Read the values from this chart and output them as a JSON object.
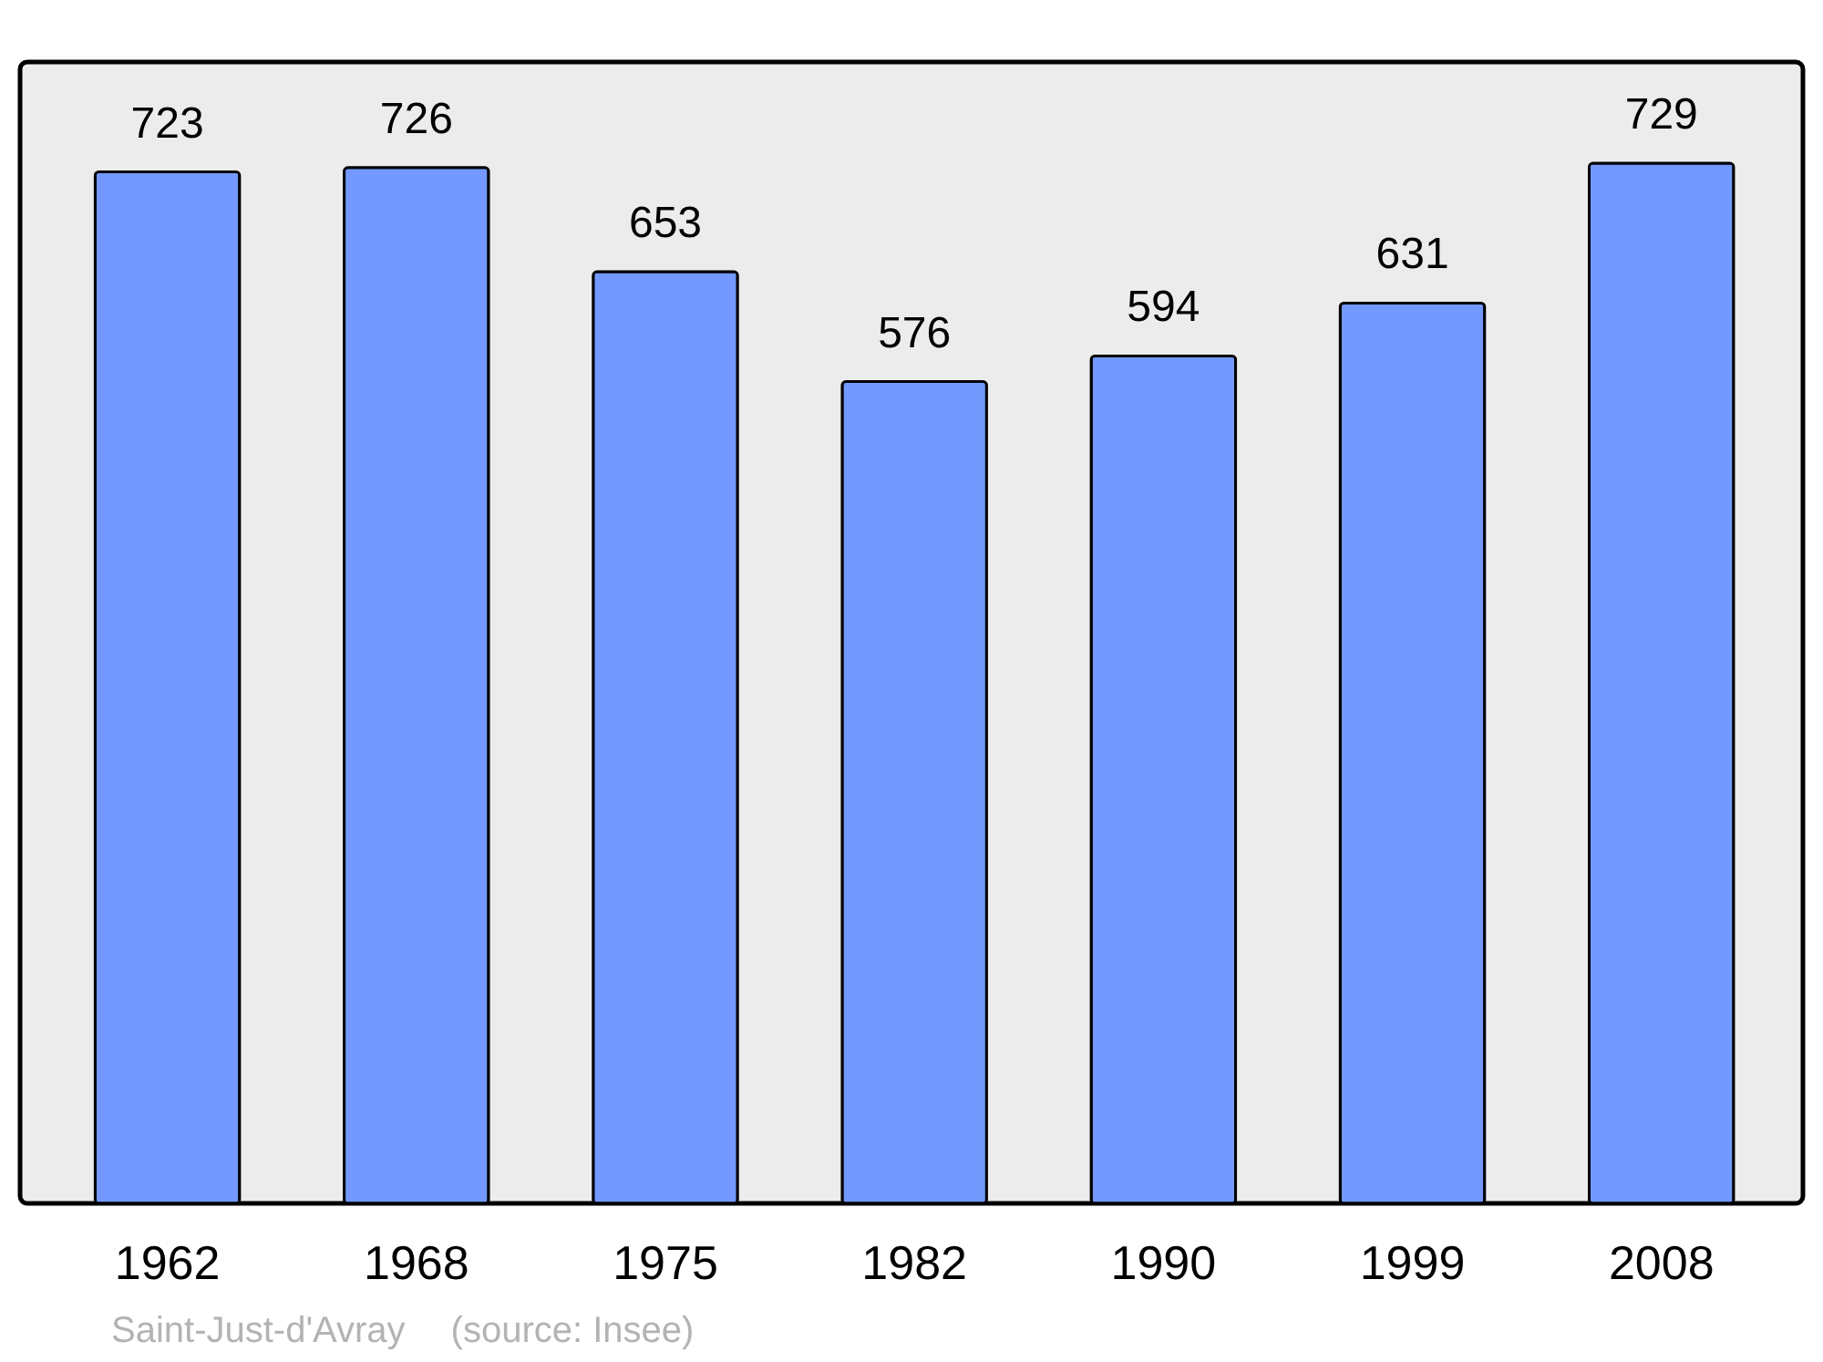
{
  "chart_data": {
    "type": "bar",
    "categories": [
      "1962",
      "1968",
      "1975",
      "1982",
      "1990",
      "1999",
      "2008"
    ],
    "values": [
      723,
      726,
      653,
      576,
      594,
      631,
      729
    ],
    "color": "#7399ff",
    "data_labels": true,
    "annotations": [
      "Saint-Just-d'Avray",
      "(source: Insee)"
    ]
  }
}
